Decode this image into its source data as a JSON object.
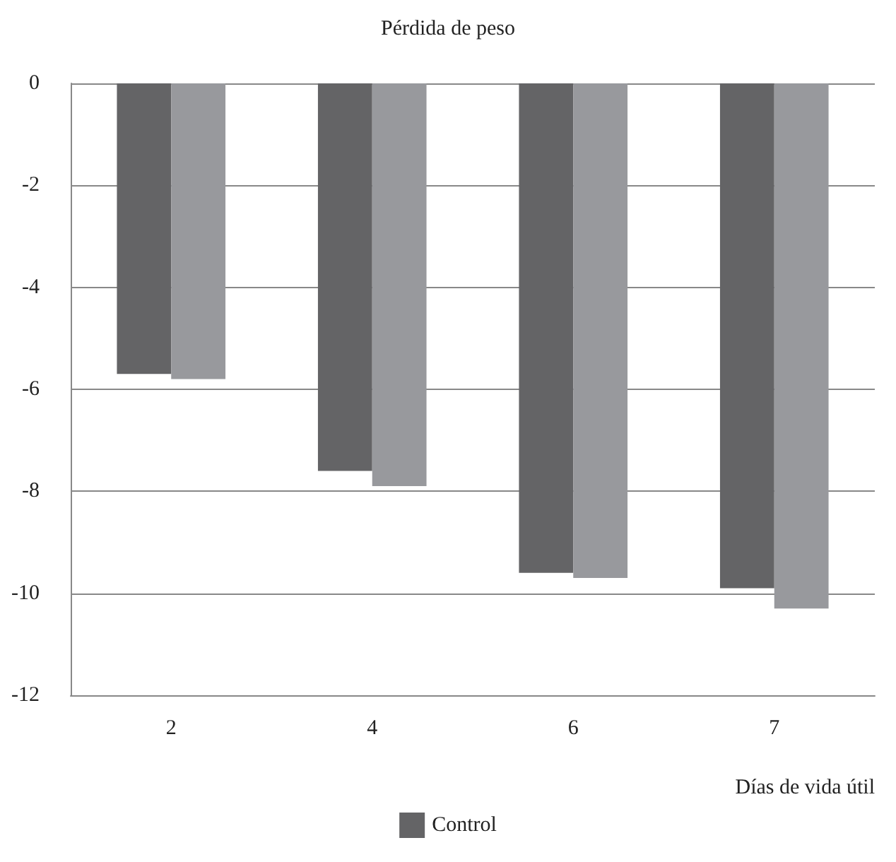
{
  "chart_data": {
    "type": "bar",
    "title": "Pérdida de peso",
    "xlabel": "Días de vida útil",
    "categories": [
      "2",
      "4",
      "6",
      "7"
    ],
    "series": [
      {
        "name": "Control",
        "color": "#646466",
        "values": [
          -5.7,
          -7.6,
          -9.6,
          -9.9
        ]
      },
      {
        "color": "#98999d",
        "values": [
          -5.8,
          -7.9,
          -9.7,
          -10.3
        ]
      }
    ],
    "ylim": [
      -12,
      0
    ],
    "yticks": [
      0,
      -2,
      -4,
      -6,
      -8,
      -10,
      -12
    ],
    "grid": "y",
    "legend": "bottom"
  }
}
